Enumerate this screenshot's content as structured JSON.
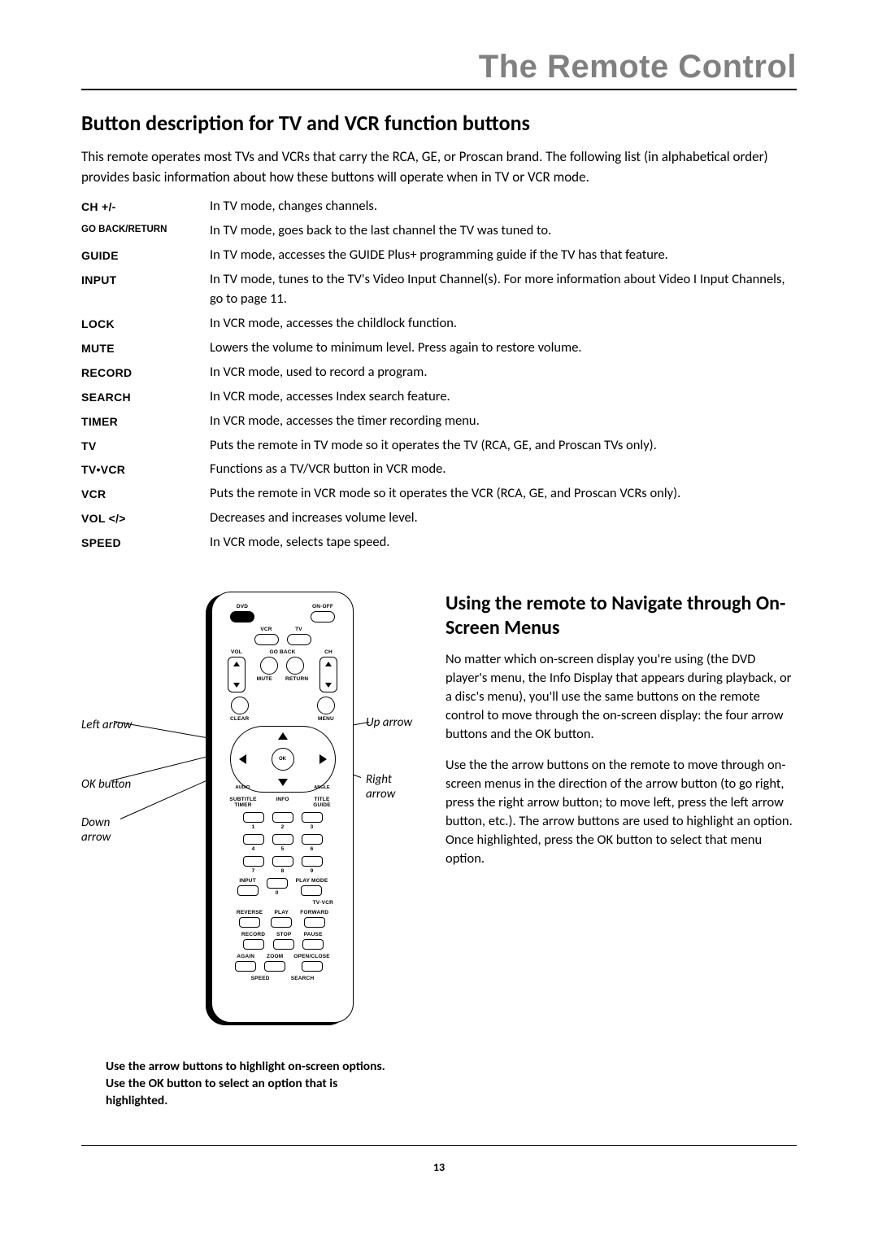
{
  "chapter_title": "The Remote Control",
  "section_title": "Button description for TV and VCR function buttons",
  "intro": "This remote operates most TVs and VCRs that carry the RCA, GE, or Proscan brand. The following list (in alphabetical order) provides basic information about how these buttons will operate when in TV or VCR mode.",
  "definitions": [
    {
      "term": "CH  +/-",
      "desc": "In TV mode, changes channels."
    },
    {
      "term": "GO BACK/RETURN",
      "desc": "In TV mode, goes back to the last channel the TV was tuned to.",
      "small": true
    },
    {
      "term": "GUIDE",
      "desc": "In TV mode, accesses the GUIDE Plus+ programming guide if the TV has that feature."
    },
    {
      "term": "INPUT",
      "desc": "In TV mode, tunes to the TV's Video Input Channel(s). For more information about Video I Input Channels, go to page 11."
    },
    {
      "term": "LOCK",
      "desc": "In VCR mode, accesses the childlock function."
    },
    {
      "term": "MUTE",
      "desc": "Lowers the volume to minimum level. Press again to restore volume."
    },
    {
      "term": "RECORD",
      "desc": "In VCR mode, used to record a program."
    },
    {
      "term": "SEARCH",
      "desc": "In VCR mode, accesses Index search feature."
    },
    {
      "term": "TIMER",
      "desc": "In VCR mode, accesses the timer recording menu."
    },
    {
      "term": "TV",
      "desc": "Puts the remote in TV mode so it operates the TV (RCA, GE, and Proscan TVs only)."
    },
    {
      "term": "TV•VCR",
      "desc": "Functions as a TV/VCR button in VCR mode."
    },
    {
      "term": "VCR",
      "desc": "Puts the remote in VCR mode so it operates the VCR (RCA, GE, and Proscan VCRs only)."
    },
    {
      "term": "VOL </>",
      "desc": "Decreases and increases volume level."
    },
    {
      "term": "SPEED",
      "desc": "In VCR mode, selects tape speed."
    }
  ],
  "subsection_title": "Using the remote to Navigate through On-Screen Menus",
  "para1": "No matter which on-screen display you're using (the DVD player's menu, the Info Display that appears during playback, or a disc's menu), you'll use the same buttons on the remote control to move through the on-screen display: the four arrow buttons and the OK button.",
  "para2": "Use the the arrow buttons on the remote to move through on-screen menus in the direction of the arrow button (to go right, press the right arrow button; to move left, press the left arrow button, etc.). The arrow buttons are used to highlight an option. Once highlighted, press the OK button to select that menu option.",
  "caption": "Use the arrow buttons to highlight on-screen options. Use the OK button to select an option that is highlighted.",
  "page_number": "13",
  "callouts": {
    "left_arrow": "Left arrow",
    "ok_button": "OK button",
    "down_arrow": "Down arrow",
    "up_arrow": "Up arrow",
    "right_arrow": "Right arrow"
  },
  "remote": {
    "dvd": "DVD",
    "onoff": "ON·OFF",
    "vcr": "VCR",
    "tv": "TV",
    "goback": "GO BACK",
    "mute": "MUTE",
    "return": "RETURN",
    "vol": "VOL",
    "ch": "CH",
    "clear": "CLEAR",
    "menu": "MENU",
    "ok": "OK",
    "audio": "AUDIO",
    "angle": "ANGLE",
    "subtitle_timer": "SUBTITLE TIMER",
    "info": "INFO",
    "title_guide": "TITLE GUIDE",
    "n1": "1",
    "n2": "2",
    "n3": "3",
    "n4": "4",
    "n5": "5",
    "n6": "6",
    "n7": "7",
    "n8": "8",
    "n9": "9",
    "n0": "0",
    "input": "INPUT",
    "playmode": "PLAY MODE",
    "tvvcr": "TV·VCR",
    "reverse": "REVERSE",
    "play": "PLAY",
    "forward": "FORWARD",
    "record": "RECORD",
    "stop": "STOP",
    "pause": "PAUSE",
    "again": "AGAIN",
    "zoom": "ZOOM",
    "openclose": "OPEN/CLOSE",
    "speed": "SPEED",
    "search": "SEARCH"
  },
  "colors": {
    "chapter_gray": "#808080"
  }
}
